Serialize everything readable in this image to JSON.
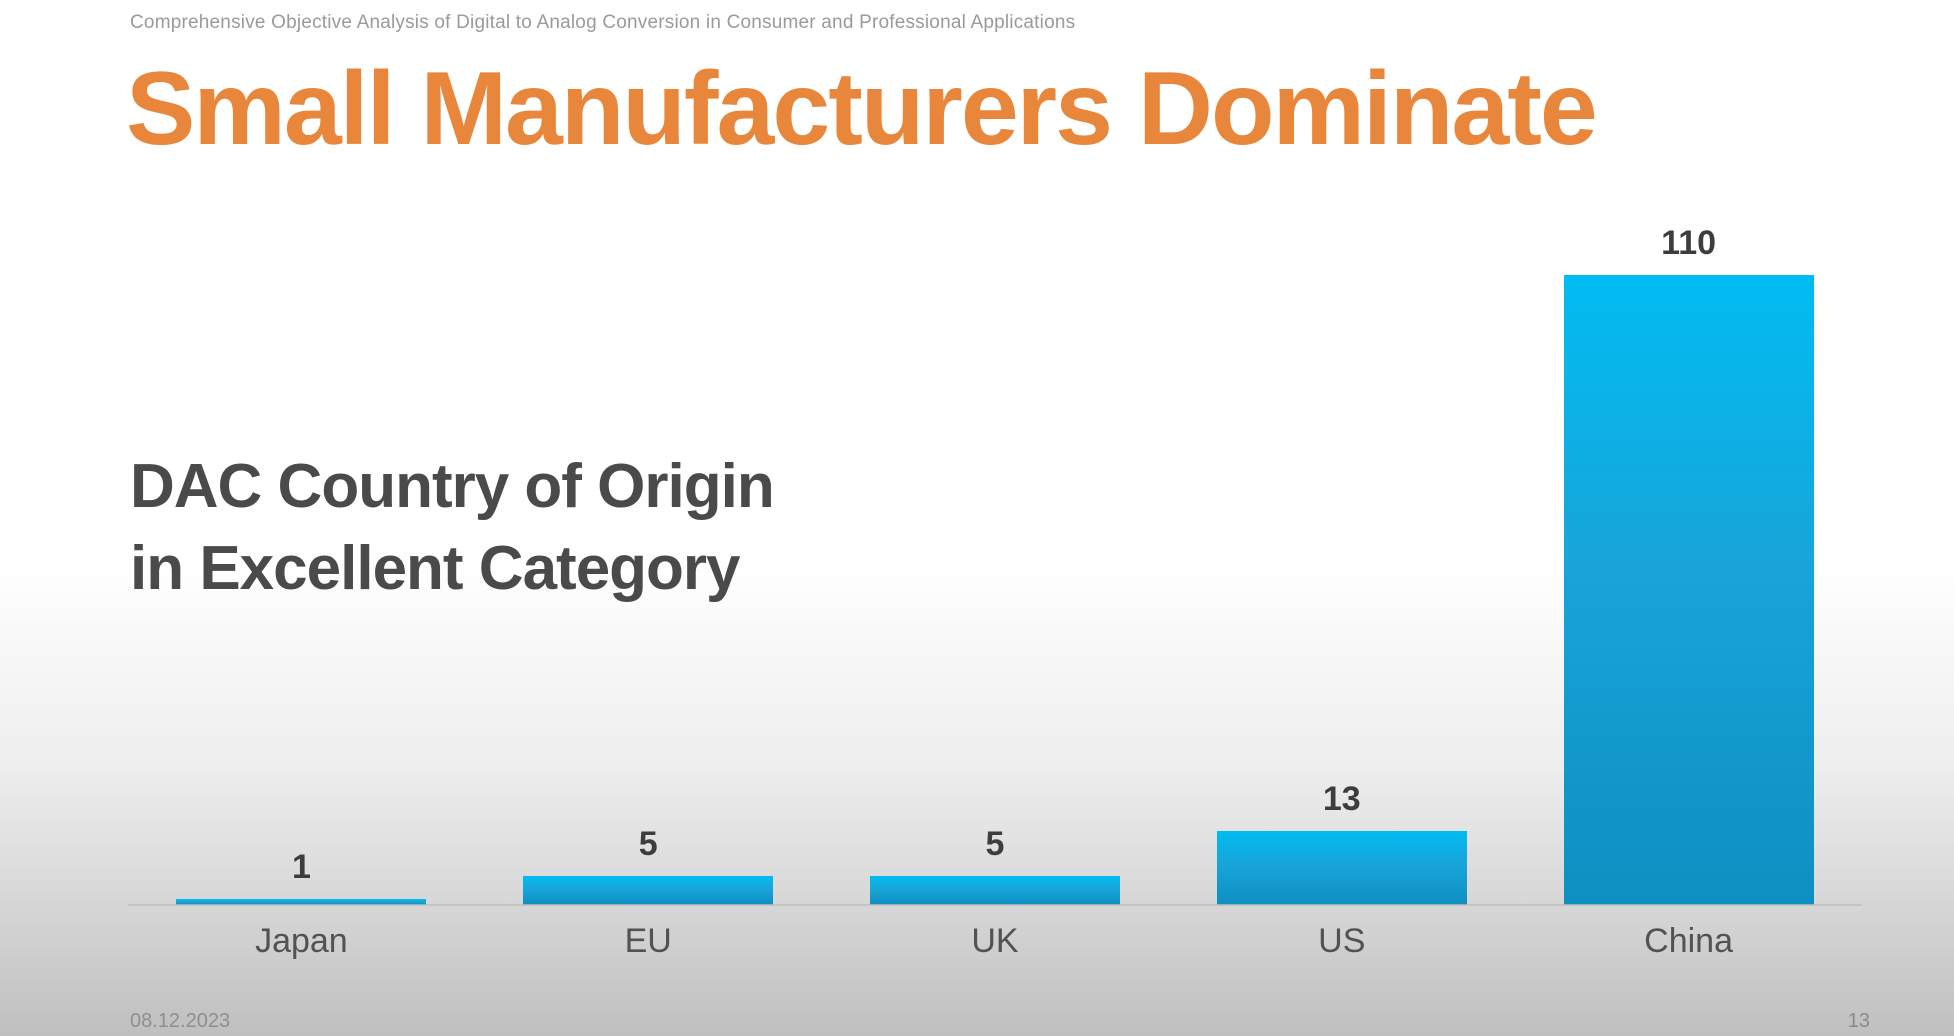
{
  "slide": {
    "header_note": "Comprehensive Objective Analysis of Digital to Analog Conversion in Consumer and Professional Applications",
    "title": "Small Manufacturers Dominate",
    "chart_label_line1": "DAC Country of Origin",
    "chart_label_line2": "in Excellent Category",
    "footer": {
      "date": "08.12.2023",
      "page_number": "13"
    }
  },
  "colors": {
    "title_orange": "#e8873b",
    "chart_label_gray": "#4a4a4a",
    "header_note_gray": "#9a9a9a",
    "value_label_gray": "#3d3d3d",
    "axis_label_gray": "#525252",
    "bar_gradient_top": "#00bcf2",
    "bar_gradient_bottom": "#0e8fc2",
    "axis_line_gray": "#bdbdbd",
    "footer_gray": "#8f8f8f",
    "background_top": "#ffffff",
    "background_bottom": "#bfbfbf"
  },
  "chart_data": {
    "type": "bar",
    "title": "DAC Country of Origin in Excellent Category",
    "categories": [
      "Japan",
      "EU",
      "UK",
      "US",
      "China"
    ],
    "values": [
      1,
      5,
      5,
      13,
      110
    ],
    "xlabel": "",
    "ylabel": "",
    "ylim": [
      0,
      110
    ],
    "grid": false,
    "legend": false,
    "value_labels_shown": true,
    "bar_color": "cyan-blue gradient"
  }
}
